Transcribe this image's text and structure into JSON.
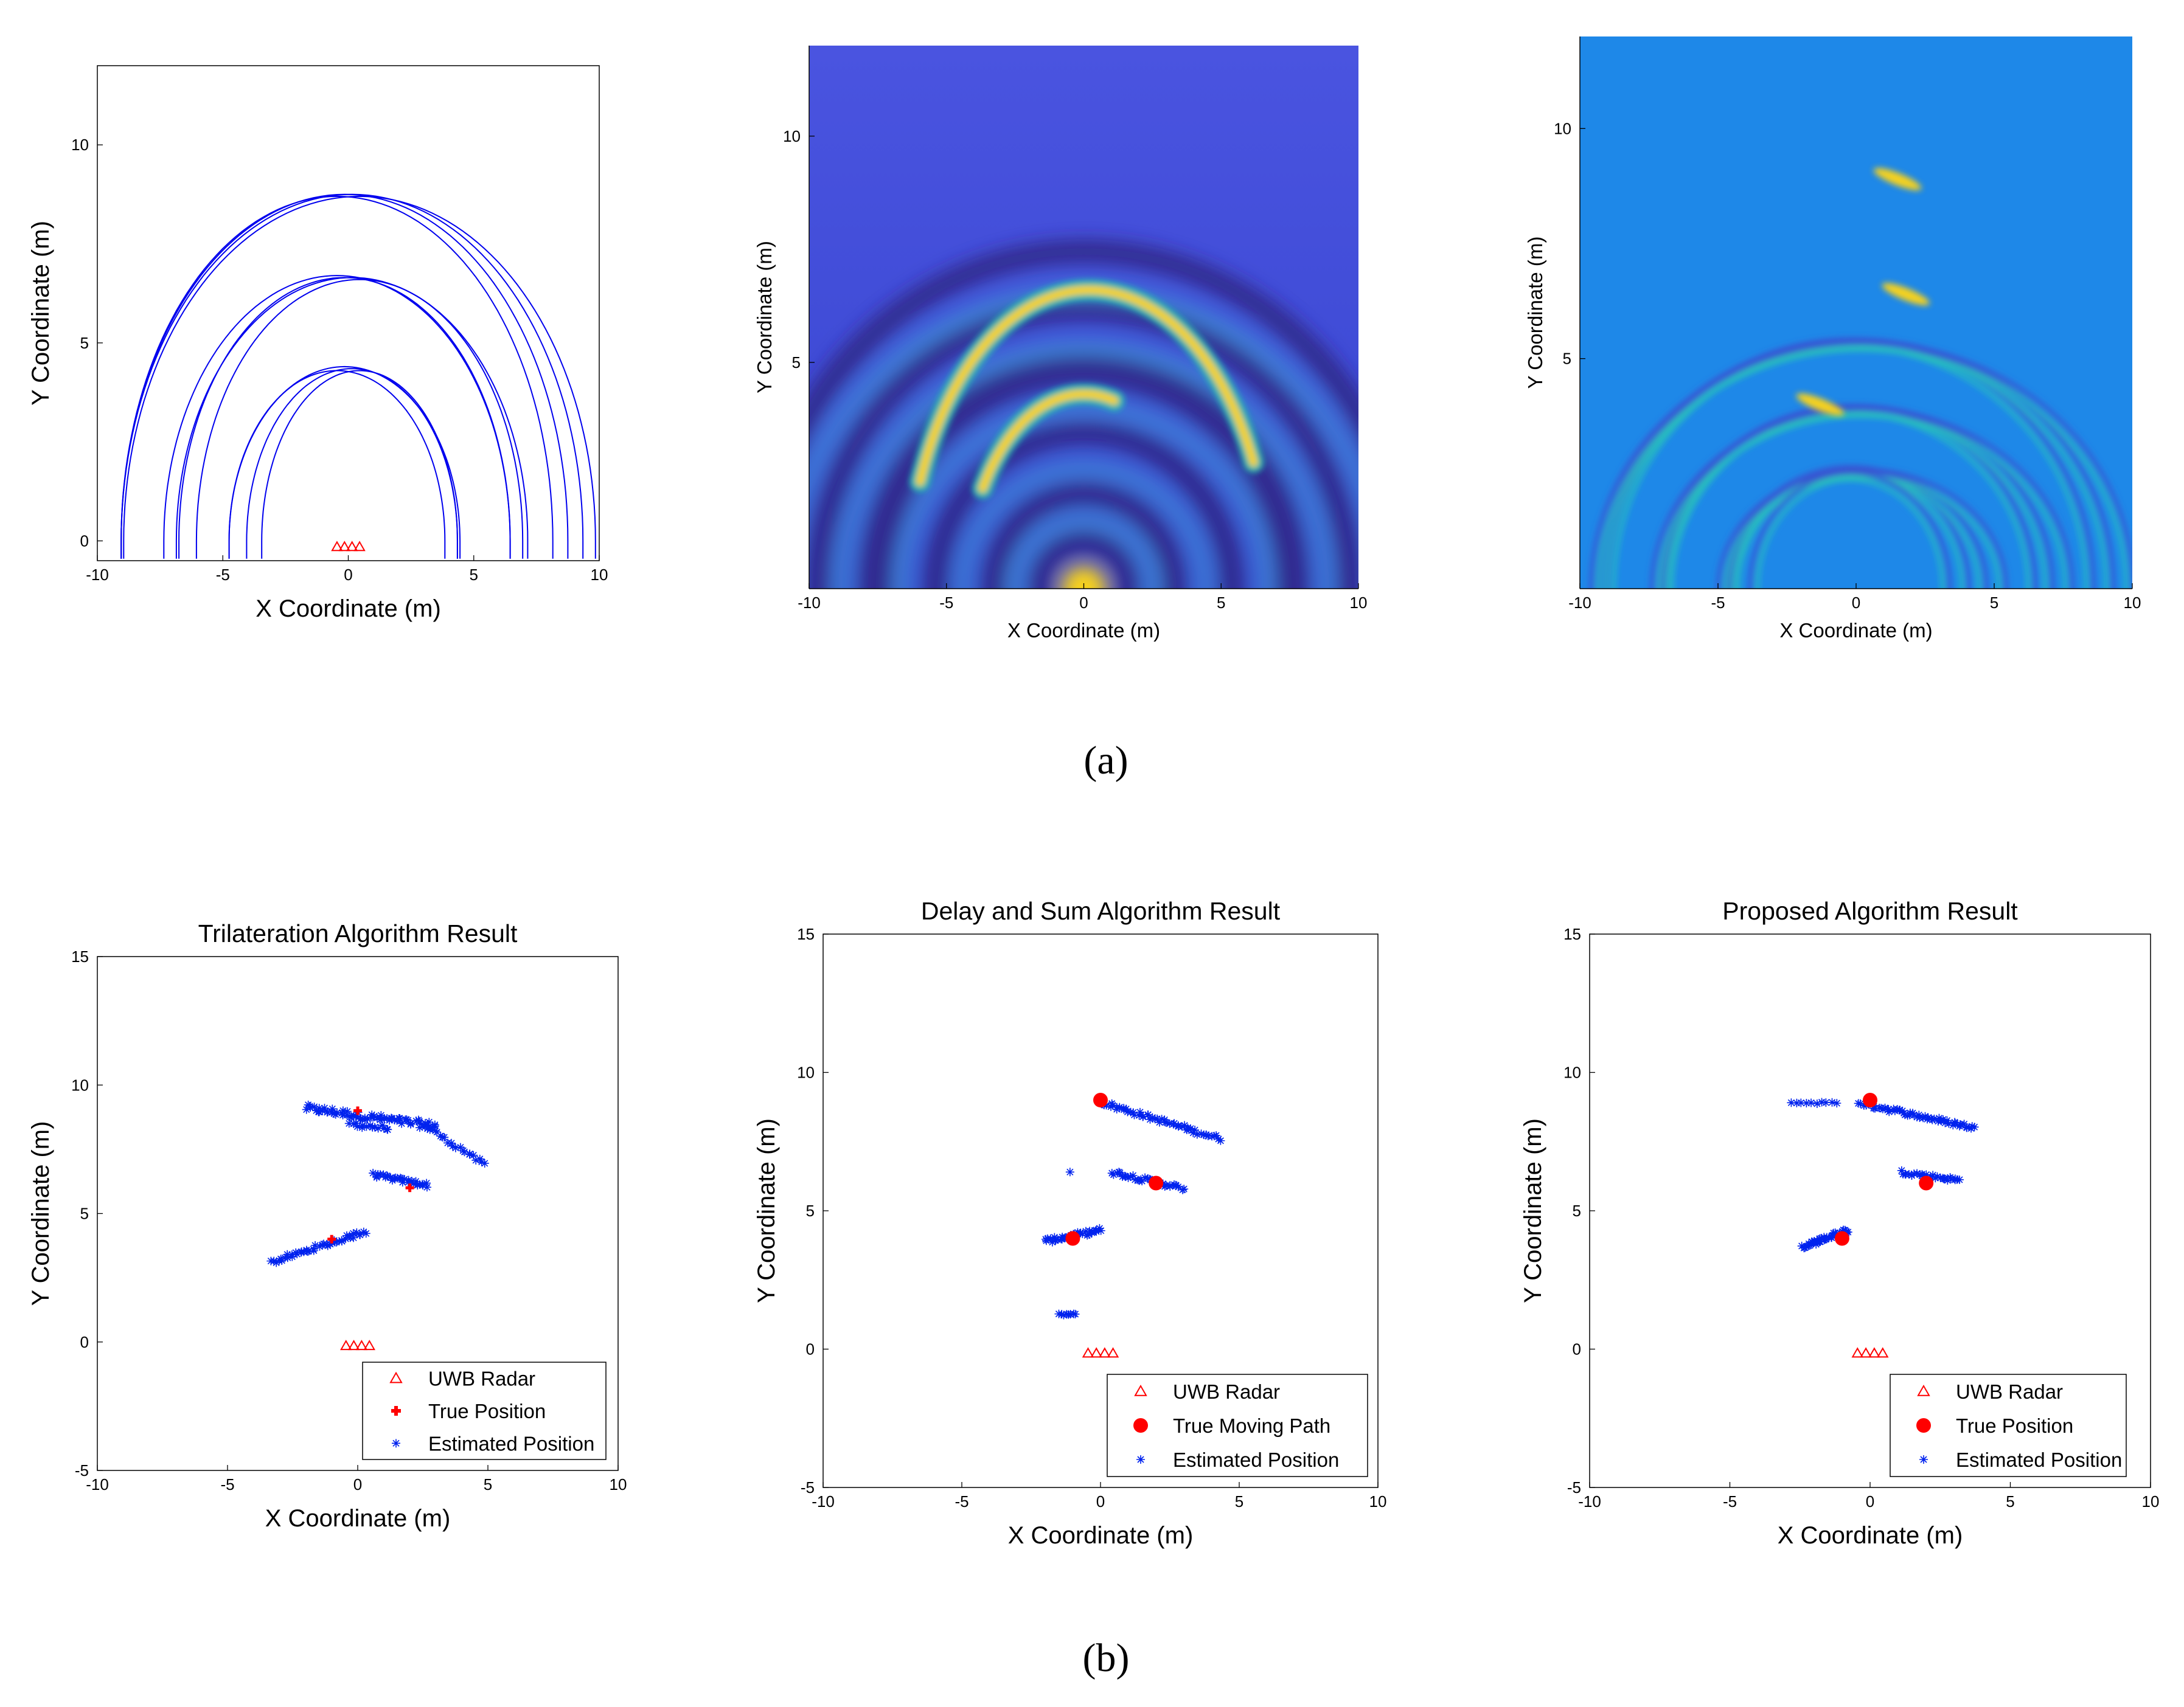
{
  "figure": {
    "label_a": "(a)",
    "label_b": "(b)"
  },
  "colors": {
    "arc": "#0000ee",
    "radar": "#ff0000",
    "true_position": "#ff0000",
    "estimated": "#0022ee",
    "heat_low": "#3b3ecf",
    "heat_dark": "#2b1f7a",
    "heat_mid": "#20b8b0",
    "heat_high": "#f7d21a",
    "proposed_bg": "#1e88e8"
  },
  "chart_data": [
    {
      "id": "a1",
      "type": "line",
      "title": "",
      "xlabel": "X Coordinate (m)",
      "ylabel": "Y Coordinate (m)",
      "xlim": [
        -10,
        10
      ],
      "ylim": [
        -0.5,
        12
      ],
      "xticks": [
        -10,
        -5,
        0,
        5,
        10
      ],
      "yticks": [
        0,
        5,
        10
      ],
      "radar_x": [
        -0.45,
        -0.15,
        0.15,
        0.45
      ],
      "radar_y": -0.15,
      "ellipses": [
        {
          "cx": -0.45,
          "a": 8.6,
          "b": 8.7
        },
        {
          "cx": -0.15,
          "a": 8.9,
          "b": 8.75
        },
        {
          "cx": 0.15,
          "a": 9.2,
          "b": 8.75
        },
        {
          "cx": 0.45,
          "a": 9.4,
          "b": 8.7
        },
        {
          "cx": -0.45,
          "a": 6.9,
          "b": 6.7
        },
        {
          "cx": -0.15,
          "a": 6.6,
          "b": 6.65
        },
        {
          "cx": 0.15,
          "a": 7.0,
          "b": 6.65
        },
        {
          "cx": 0.45,
          "a": 6.5,
          "b": 6.6
        },
        {
          "cx": -0.45,
          "a": 4.3,
          "b": 4.3
        },
        {
          "cx": -0.15,
          "a": 4.6,
          "b": 4.4
        },
        {
          "cx": 0.15,
          "a": 4.2,
          "b": 4.35
        },
        {
          "cx": 0.45,
          "a": 3.9,
          "b": 4.3
        }
      ]
    },
    {
      "id": "a2",
      "type": "heatmap",
      "title": "",
      "xlabel": "X Coordinate (m)",
      "ylabel": "Y Coordinate (m)",
      "xlim": [
        -10,
        10
      ],
      "ylim": [
        0,
        12
      ],
      "xticks": [
        -10,
        -5,
        0,
        5,
        10
      ],
      "yticks": [
        5,
        10
      ],
      "bright_arcs": [
        {
          "cx": 0.2,
          "r": 6.6,
          "from_deg": 25,
          "to_deg": 160,
          "color": "heat_high"
        },
        {
          "cx": 0.0,
          "r": 4.3,
          "from_deg": 75,
          "to_deg": 150,
          "color": "heat_high"
        }
      ]
    },
    {
      "id": "a3",
      "type": "heatmap",
      "title": "",
      "xlabel": "X Coordinate (m)",
      "ylabel": "Y Coordinate (m)",
      "xlim": [
        -10,
        10
      ],
      "ylim": [
        0,
        12
      ],
      "xticks": [
        -10,
        -5,
        0,
        5,
        10
      ],
      "yticks": [
        5,
        10
      ],
      "hotspots": [
        {
          "x": 1.5,
          "y": 8.9
        },
        {
          "x": 1.8,
          "y": 6.4
        },
        {
          "x": -1.3,
          "y": 4.0
        }
      ]
    },
    {
      "id": "b1",
      "type": "scatter",
      "title": "Trilateration Algorithm Result",
      "xlabel": "X Coordinate (m)",
      "ylabel": "Y Coordinate (m)",
      "xlim": [
        -10,
        10
      ],
      "ylim": [
        -5,
        15
      ],
      "xticks": [
        -10,
        -5,
        0,
        5,
        10
      ],
      "yticks": [
        -5,
        0,
        5,
        10,
        15
      ],
      "radar_x": [
        -0.45,
        -0.15,
        0.15,
        0.45
      ],
      "radar_y": -0.15,
      "true_positions": [
        [
          0,
          9
        ],
        [
          2,
          6
        ],
        [
          -1,
          4
        ]
      ],
      "estimated_clusters": [
        {
          "x0": -2.0,
          "y0": 9.1,
          "x1": 3.0,
          "y1": 8.4,
          "n": 70,
          "spread": 0.2
        },
        {
          "x0": 2.6,
          "y0": 8.4,
          "x1": 4.9,
          "y1": 6.9,
          "n": 22,
          "spread": 0.12
        },
        {
          "x0": -0.3,
          "y0": 8.5,
          "x1": 1.2,
          "y1": 8.3,
          "n": 15,
          "spread": 0.15
        },
        {
          "x0": 0.6,
          "y0": 6.5,
          "x1": 2.7,
          "y1": 6.1,
          "n": 30,
          "spread": 0.12
        },
        {
          "x0": -3.3,
          "y0": 3.1,
          "x1": 0.3,
          "y1": 4.3,
          "n": 45,
          "spread": 0.13
        }
      ],
      "legend": {
        "position": "bottom-right",
        "entries": [
          "UWB Radar",
          "True Position",
          "Estimated Position"
        ],
        "markers": [
          "triangle",
          "cross",
          "star"
        ]
      }
    },
    {
      "id": "b2",
      "type": "scatter",
      "title": "Delay and Sum Algorithm Result",
      "xlabel": "X Coordinate (m)",
      "ylabel": "Y Coordinate (m)",
      "xlim": [
        -10,
        10
      ],
      "ylim": [
        -5,
        15
      ],
      "xticks": [
        -10,
        -5,
        0,
        5,
        10
      ],
      "yticks": [
        -5,
        0,
        5,
        10,
        15
      ],
      "radar_x": [
        -0.45,
        -0.15,
        0.15,
        0.45
      ],
      "radar_y": -0.15,
      "true_positions": [
        [
          0,
          9
        ],
        [
          2,
          6
        ],
        [
          -1,
          4
        ]
      ],
      "estimated_clusters": [
        {
          "x0": 0.1,
          "y0": 8.9,
          "x1": 4.3,
          "y1": 7.6,
          "n": 55,
          "spread": 0.12
        },
        {
          "x0": 0.4,
          "y0": 6.4,
          "x1": 3.0,
          "y1": 5.8,
          "n": 35,
          "spread": 0.12
        },
        {
          "x0": -2.0,
          "y0": 3.9,
          "x1": 0.0,
          "y1": 4.3,
          "n": 35,
          "spread": 0.12
        },
        {
          "x0": -1.5,
          "y0": 1.25,
          "x1": -0.9,
          "y1": 1.25,
          "n": 8,
          "spread": 0.04
        },
        {
          "x0": -1.1,
          "y0": 6.4,
          "x1": -1.1,
          "y1": 6.4,
          "n": 1,
          "spread": 0.0
        }
      ],
      "legend": {
        "position": "bottom-right",
        "entries": [
          "UWB Radar",
          "True Moving Path",
          "Estimated Position"
        ],
        "markers": [
          "triangle",
          "dot",
          "star"
        ]
      }
    },
    {
      "id": "b3",
      "type": "scatter",
      "title": "Proposed Algorithm Result",
      "xlabel": "X Coordinate (m)",
      "ylabel": "Y Coordinate (m)",
      "xlim": [
        -10,
        10
      ],
      "ylim": [
        -5,
        15
      ],
      "xticks": [
        -10,
        -5,
        0,
        5,
        10
      ],
      "yticks": [
        -5,
        0,
        5,
        10,
        15
      ],
      "radar_x": [
        -0.45,
        -0.15,
        0.15,
        0.45
      ],
      "radar_y": -0.15,
      "true_positions": [
        [
          0,
          9
        ],
        [
          2,
          6
        ],
        [
          -1,
          4
        ]
      ],
      "estimated_clusters": [
        {
          "x0": -2.8,
          "y0": 8.9,
          "x1": -1.2,
          "y1": 8.9,
          "n": 10,
          "spread": 0.05
        },
        {
          "x0": -0.4,
          "y0": 8.9,
          "x1": 3.7,
          "y1": 8.0,
          "n": 60,
          "spread": 0.12
        },
        {
          "x0": 1.1,
          "y0": 6.4,
          "x1": 3.2,
          "y1": 6.1,
          "n": 30,
          "spread": 0.1
        },
        {
          "x0": -2.4,
          "y0": 3.7,
          "x1": -0.8,
          "y1": 4.3,
          "n": 40,
          "spread": 0.12
        }
      ],
      "legend": {
        "position": "bottom-right",
        "entries": [
          "UWB Radar",
          "True Position",
          "Estimated Position"
        ],
        "markers": [
          "triangle",
          "dot",
          "star"
        ]
      }
    }
  ]
}
